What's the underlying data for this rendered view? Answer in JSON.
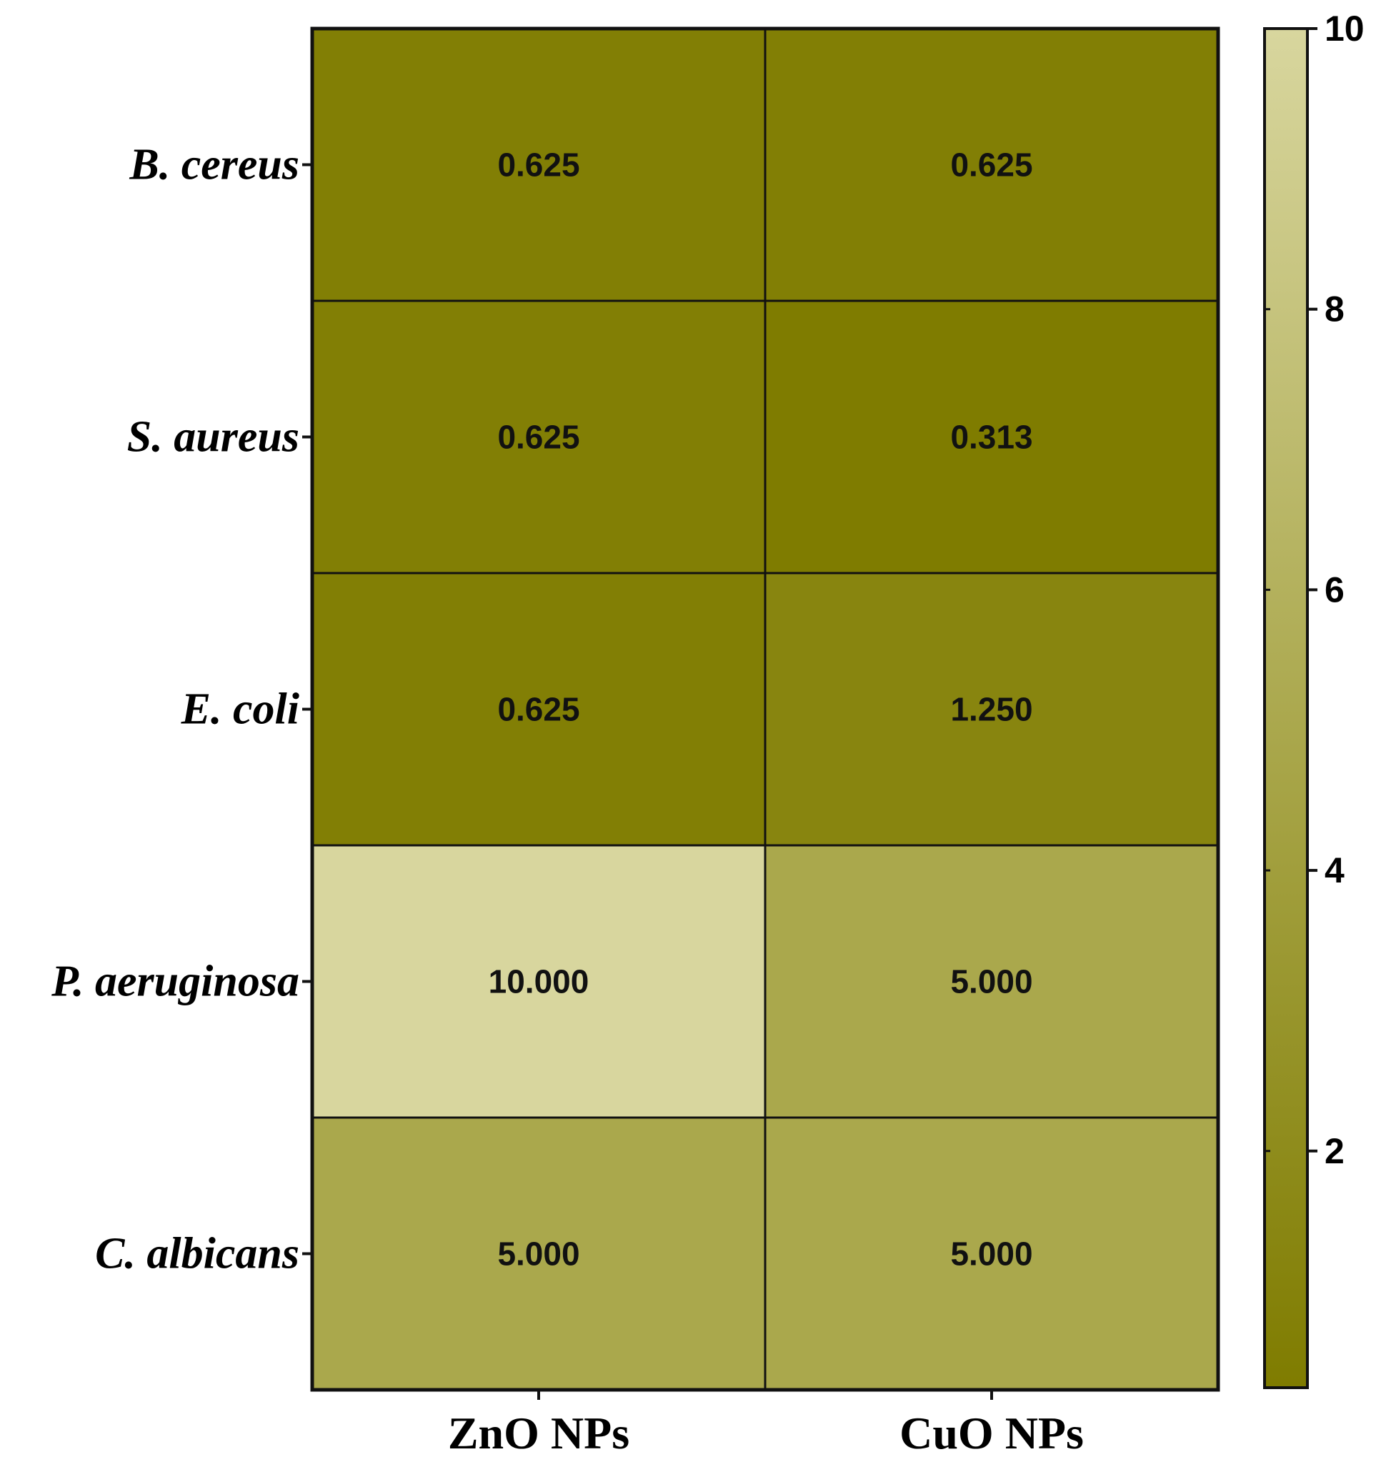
{
  "chart_data": {
    "type": "heatmap",
    "title": "",
    "xlabel": "",
    "ylabel": "",
    "columns": [
      "ZnO NPs",
      "CuO NPs"
    ],
    "rows": [
      "B. cereus",
      "S. aureus",
      "E. coli",
      "P. aeruginosa",
      "C. albicans"
    ],
    "values": [
      [
        0.625,
        0.625
      ],
      [
        0.625,
        0.313
      ],
      [
        0.625,
        1.25
      ],
      [
        10.0,
        5.0
      ],
      [
        5.0,
        5.0
      ]
    ],
    "value_labels": [
      [
        "0.625",
        "0.625"
      ],
      [
        "0.625",
        "0.313"
      ],
      [
        "0.625",
        "1.250"
      ],
      [
        "10.000",
        "5.000"
      ],
      [
        "5.000",
        "5.000"
      ]
    ],
    "colorbar": {
      "range": [
        0.313,
        10
      ],
      "ticks": [
        2,
        4,
        6,
        8,
        10
      ],
      "tick_labels": [
        "2",
        "4",
        "6",
        "8",
        "10"
      ],
      "color_low": "#7f7c00",
      "color_high": "#d8d69e",
      "placement": "right"
    }
  }
}
